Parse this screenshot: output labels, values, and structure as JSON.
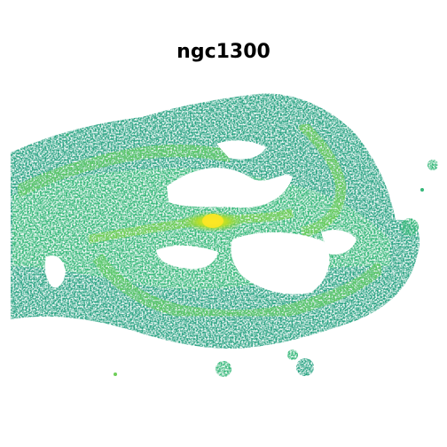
{
  "title": "ngc1300",
  "colors": {
    "background": "#ffffff",
    "low": "#1f9e89",
    "mid": "#35b779",
    "high": "#6ece58",
    "peak": "#b5de2b",
    "core": "#fde725"
  },
  "colormap": "viridis"
}
